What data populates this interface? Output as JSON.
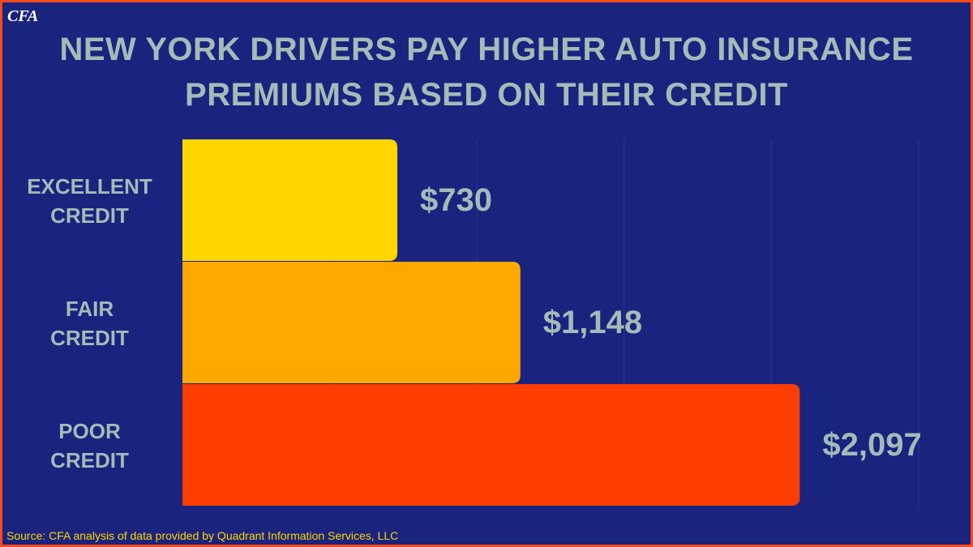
{
  "logo": "CFA",
  "chart_data": {
    "type": "hbar",
    "title": "NEW YORK DRIVERS PAY HIGHER AUTO INSURANCE PREMIUMS BASED ON THEIR CREDIT",
    "categories": [
      "EXCELLENT CREDIT",
      "FAIR CREDIT",
      "POOR CREDIT"
    ],
    "values": [
      730,
      1148,
      2097
    ],
    "value_labels": [
      "$730",
      "$1,148",
      "$2,097"
    ],
    "colors": [
      "#ffd600",
      "#ffa800",
      "#ff3d00"
    ],
    "xlim": [
      0,
      2600
    ],
    "xgrid": [
      500,
      1000,
      1500,
      2000,
      2500
    ],
    "source": "Source: CFA analysis of data provided by Quadrant Information Services, LLC"
  }
}
